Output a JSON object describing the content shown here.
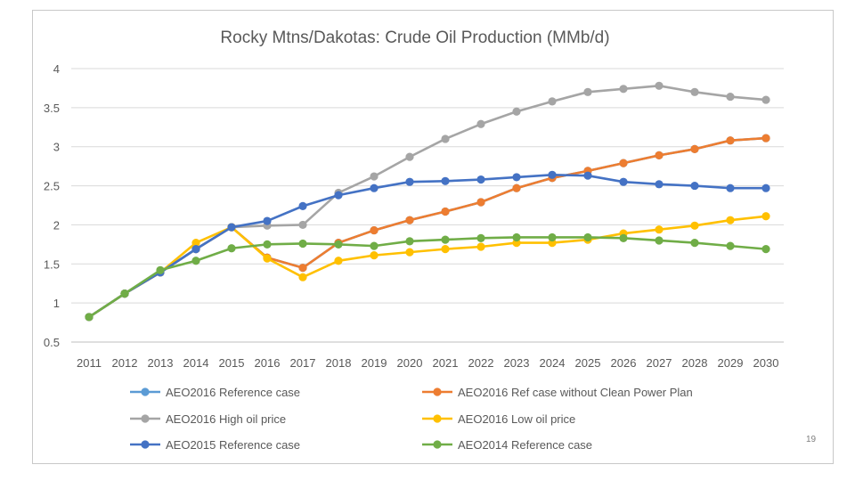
{
  "page_number": "19",
  "chart_data": {
    "type": "line",
    "title": "Rocky Mtns/Dakotas: Crude Oil Production (MMb/d)",
    "xlabel": "",
    "ylabel": "",
    "ylim": [
      0.5,
      4
    ],
    "yticks": [
      "0.5",
      "1",
      "1.5",
      "2",
      "2.5",
      "3",
      "3.5",
      "4"
    ],
    "grid": "horizontal",
    "legend_position": "bottom",
    "categories": [
      "2011",
      "2012",
      "2013",
      "2014",
      "2015",
      "2016",
      "2017",
      "2018",
      "2019",
      "2020",
      "2021",
      "2022",
      "2023",
      "2024",
      "2025",
      "2026",
      "2027",
      "2028",
      "2029",
      "2030"
    ],
    "series": [
      {
        "name": "AEO2016 Reference case",
        "color": "#5b9bd5",
        "values": [
          0.82,
          1.12,
          1.39,
          1.69,
          1.97,
          1.58,
          1.45,
          1.77,
          1.93,
          2.06,
          2.17,
          2.29,
          2.47,
          2.6,
          2.69,
          2.79,
          2.89,
          2.97,
          3.08,
          3.11
        ]
      },
      {
        "name": "AEO2016 Ref case without Clean Power Plan",
        "color": "#ed7d31",
        "values": [
          0.82,
          1.12,
          1.39,
          1.69,
          1.97,
          1.58,
          1.45,
          1.77,
          1.93,
          2.06,
          2.17,
          2.29,
          2.47,
          2.6,
          2.69,
          2.79,
          2.89,
          2.97,
          3.08,
          3.11
        ]
      },
      {
        "name": "AEO2016 High oil price",
        "color": "#a5a5a5",
        "values": [
          0.82,
          1.12,
          1.39,
          1.69,
          1.97,
          1.99,
          2.0,
          2.41,
          2.62,
          2.87,
          3.1,
          3.29,
          3.45,
          3.58,
          3.7,
          3.74,
          3.78,
          3.7,
          3.64,
          3.6
        ]
      },
      {
        "name": "AEO2016 Low oil price",
        "color": "#ffc000",
        "values": [
          0.82,
          1.12,
          1.39,
          1.77,
          1.97,
          1.57,
          1.33,
          1.54,
          1.61,
          1.65,
          1.69,
          1.72,
          1.77,
          1.77,
          1.81,
          1.89,
          1.94,
          1.99,
          2.06,
          2.11
        ]
      },
      {
        "name": "AEO2015 Reference case",
        "color": "#4472c4",
        "values": [
          0.82,
          1.12,
          1.39,
          1.69,
          1.97,
          2.05,
          2.24,
          2.38,
          2.47,
          2.55,
          2.56,
          2.58,
          2.61,
          2.64,
          2.63,
          2.55,
          2.52,
          2.5,
          2.47,
          2.47
        ]
      },
      {
        "name": "AEO2014 Reference case",
        "color": "#70ad47",
        "values": [
          0.82,
          1.12,
          1.42,
          1.54,
          1.7,
          1.75,
          1.76,
          1.75,
          1.73,
          1.79,
          1.81,
          1.83,
          1.84,
          1.84,
          1.84,
          1.83,
          1.8,
          1.77,
          1.73,
          1.69
        ]
      }
    ]
  }
}
